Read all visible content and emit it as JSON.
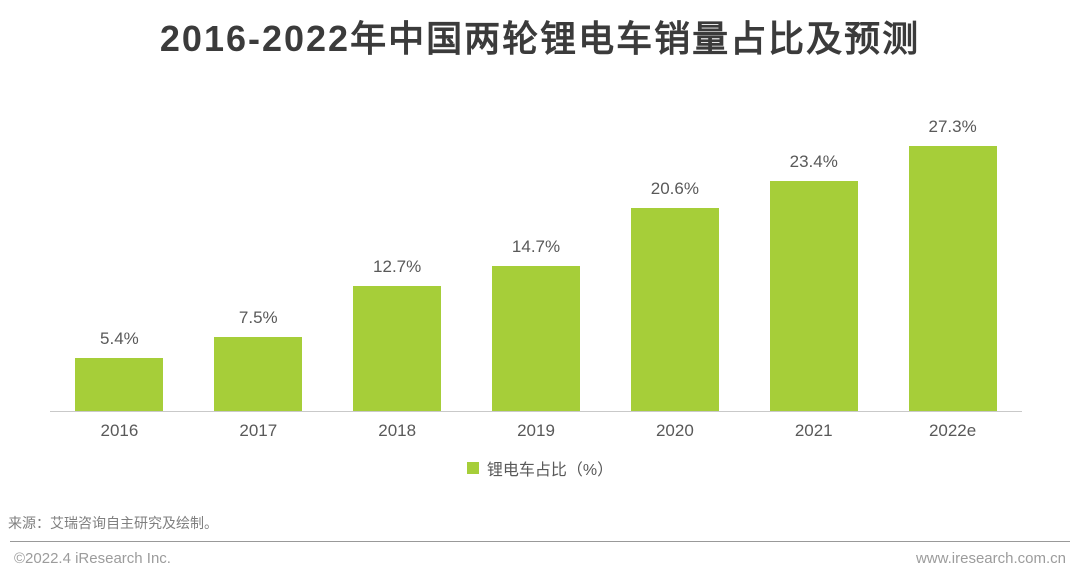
{
  "title": "2016-2022年中国两轮锂电车销量占比及预测",
  "chart_data": {
    "type": "bar",
    "title": "2016-2022年中国两轮锂电车销量占比及预测",
    "categories": [
      "2016",
      "2017",
      "2018",
      "2019",
      "2020",
      "2021",
      "2022e"
    ],
    "values": [
      5.4,
      7.5,
      12.7,
      14.7,
      20.6,
      23.4,
      27.3
    ],
    "value_labels": [
      "5.4%",
      "7.5%",
      "12.7%",
      "14.7%",
      "20.6%",
      "23.4%",
      "27.3%"
    ],
    "series_name": "锂电车占比（%）",
    "xlabel": "",
    "ylabel": "",
    "ylim": [
      0,
      30
    ],
    "grid": false,
    "legend_position": "bottom",
    "bar_color": "#A6CE39"
  },
  "legend": {
    "label": "锂电车占比（%）"
  },
  "source_note": "来源：艾瑞咨询自主研究及绘制。",
  "footer": {
    "left": "©2022.4 iResearch Inc.",
    "right": "www.iresearch.com.cn"
  },
  "colors": {
    "bar": "#A6CE39",
    "title_text": "#3B3B3B",
    "label_text": "#595959",
    "source_text": "#7F7F7F",
    "footer_text": "#9C9C9C",
    "axis_line": "#C9C9C9",
    "divider_line": "#999999"
  }
}
